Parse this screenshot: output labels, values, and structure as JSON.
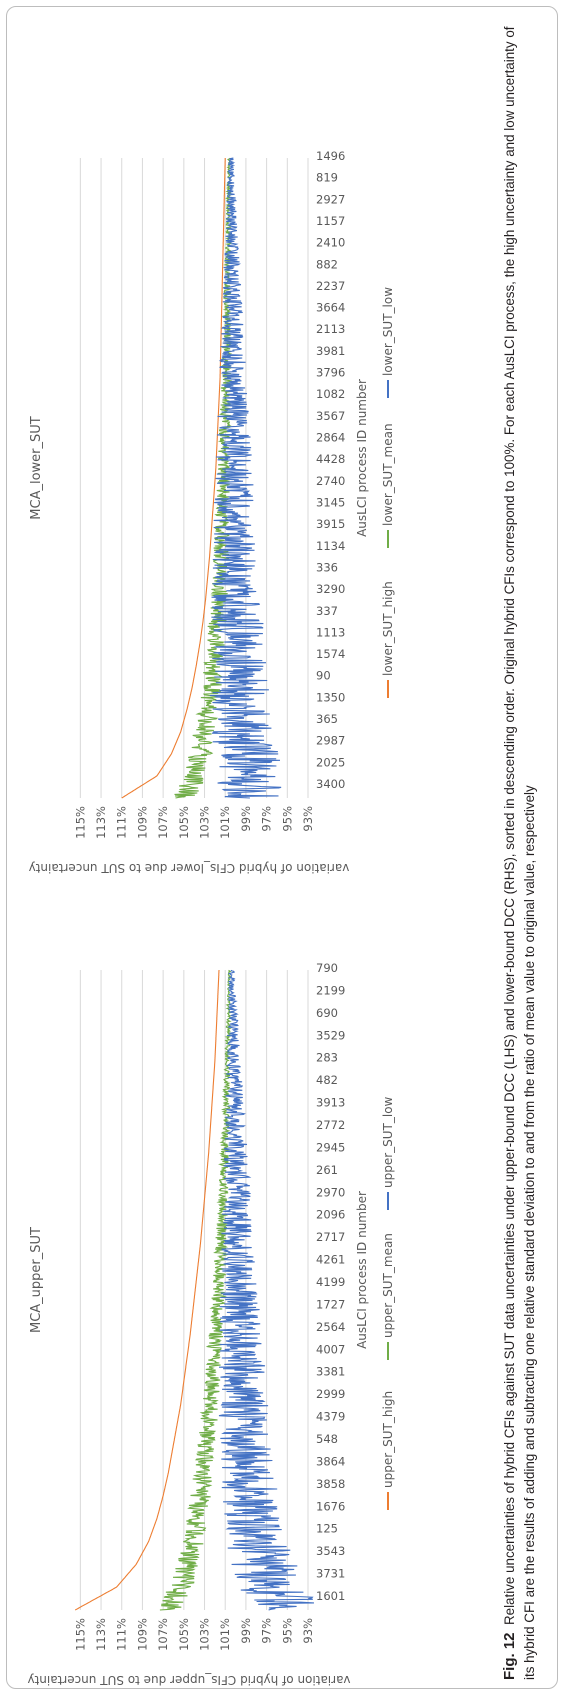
{
  "figure": {
    "label": "Fig. 12",
    "caption": "Relative uncertainties of hybrid CFIs against SUT data uncertainties under upper-bound DCC (LHS) and lower-bound DCC (RHS), sorted in descending order. Original hybrid CFIs correspond to 100%. For each AusLCI process, the high uncertainty and low uncertainty of its hybrid CFI are the results of adding and subtracting one relative standard deviation to and from the ratio of mean value to original value, respectively"
  },
  "chart_data": [
    {
      "type": "line",
      "title": "MCA_upper_SUT",
      "xlabel": "AusLCI process ID number",
      "ylabel": "variation of hybrid CFIs_upper due to SUT uncertainty",
      "ylim": [
        93,
        116
      ],
      "yticks": [
        "93%",
        "95%",
        "97%",
        "99%",
        "101%",
        "103%",
        "105%",
        "107%",
        "109%",
        "111%",
        "113%",
        "115%"
      ],
      "grid": true,
      "legend_position": "bottom",
      "x_tick_labels": [
        "1601",
        "3731",
        "3543",
        "125",
        "1676",
        "3858",
        "3864",
        "548",
        "4379",
        "2999",
        "3381",
        "4007",
        "2564",
        "1727",
        "4199",
        "4261",
        "2717",
        "2096",
        "2970",
        "261",
        "2945",
        "2772",
        "3913",
        "482",
        "283",
        "3529",
        "690",
        "2199",
        "790"
      ],
      "series": [
        {
          "name": "upper_SUT_high",
          "color": "#ed7d31",
          "values": [
            115.5,
            111.5,
            109.6,
            108.4,
            107.6,
            107.0,
            106.5,
            106.1,
            105.7,
            105.3,
            105.0,
            104.7,
            104.4,
            104.15,
            103.9,
            103.65,
            103.4,
            103.2,
            103.0,
            102.8,
            102.6,
            102.45,
            102.3,
            102.15,
            102.0,
            101.9,
            101.8,
            101.7,
            101.6
          ]
        },
        {
          "name": "upper_SUT_mean",
          "color": "#70ad47",
          "values": [
            106.5,
            105.3,
            104.6,
            104.1,
            103.7,
            103.4,
            103.1,
            102.85,
            102.6,
            102.4,
            102.2,
            102.05,
            101.9,
            101.75,
            101.6,
            101.5,
            101.4,
            101.3,
            101.2,
            101.1,
            101.05,
            101.0,
            100.9,
            100.85,
            100.8,
            100.75,
            100.7,
            100.65,
            100.6
          ]
        },
        {
          "name": "upper_SUT_low",
          "color": "#4472c4",
          "values": [
            94.5,
            96.5,
            97.3,
            97.8,
            98.2,
            98.5,
            98.7,
            98.9,
            99.05,
            99.2,
            99.3,
            99.4,
            99.5,
            99.6,
            99.7,
            99.75,
            99.8,
            99.85,
            99.9,
            99.95,
            100.0,
            100.05,
            100.1,
            100.15,
            100.2,
            100.25,
            100.3,
            100.35,
            100.4
          ]
        }
      ]
    },
    {
      "type": "line",
      "title": "MCA_lower_SUT",
      "xlabel": "AusLCI process ID number",
      "ylabel": "variation of hybrid CFIs_lower due to SUT uncertainty",
      "ylim": [
        93,
        116
      ],
      "yticks": [
        "93%",
        "95%",
        "97%",
        "99%",
        "101%",
        "103%",
        "105%",
        "107%",
        "109%",
        "111%",
        "113%",
        "115%"
      ],
      "grid": true,
      "legend_position": "bottom",
      "x_tick_labels": [
        "3400",
        "2025",
        "2987",
        "365",
        "1350",
        "90",
        "1574",
        "1113",
        "337",
        "3290",
        "336",
        "1134",
        "3915",
        "3145",
        "2740",
        "4428",
        "2864",
        "3567",
        "1082",
        "3796",
        "3981",
        "2113",
        "3664",
        "2237",
        "882",
        "2410",
        "1157",
        "2927",
        "819",
        "1496"
      ],
      "series": [
        {
          "name": "lower_SUT_high",
          "color": "#ed7d31",
          "values": [
            111.0,
            107.6,
            106.2,
            105.3,
            104.7,
            104.2,
            103.8,
            103.45,
            103.15,
            102.9,
            102.7,
            102.5,
            102.35,
            102.2,
            102.05,
            101.9,
            101.8,
            101.7,
            101.6,
            101.5,
            101.45,
            101.4,
            101.35,
            101.3,
            101.25,
            101.2,
            101.15,
            101.1,
            101.05,
            101.0
          ]
        },
        {
          "name": "lower_SUT_mean",
          "color": "#70ad47",
          "values": [
            105.0,
            104.0,
            103.4,
            103.0,
            102.65,
            102.35,
            102.1,
            101.9,
            101.75,
            101.6,
            101.5,
            101.4,
            101.3,
            101.2,
            101.15,
            101.1,
            101.05,
            101.0,
            100.95,
            100.9,
            100.87,
            100.84,
            100.81,
            100.78,
            100.75,
            100.72,
            100.7,
            100.68,
            100.66,
            100.64
          ]
        },
        {
          "name": "lower_SUT_low",
          "color": "#4472c4",
          "values": [
            98.8,
            98.6,
            99.0,
            99.3,
            99.5,
            99.6,
            99.7,
            99.8,
            99.85,
            99.9,
            99.95,
            100.0,
            100.05,
            100.1,
            100.12,
            100.15,
            100.18,
            100.2,
            100.22,
            100.25,
            100.27,
            100.3,
            100.32,
            100.34,
            100.36,
            100.38,
            100.4,
            100.42,
            100.44,
            100.46
          ]
        }
      ]
    }
  ]
}
